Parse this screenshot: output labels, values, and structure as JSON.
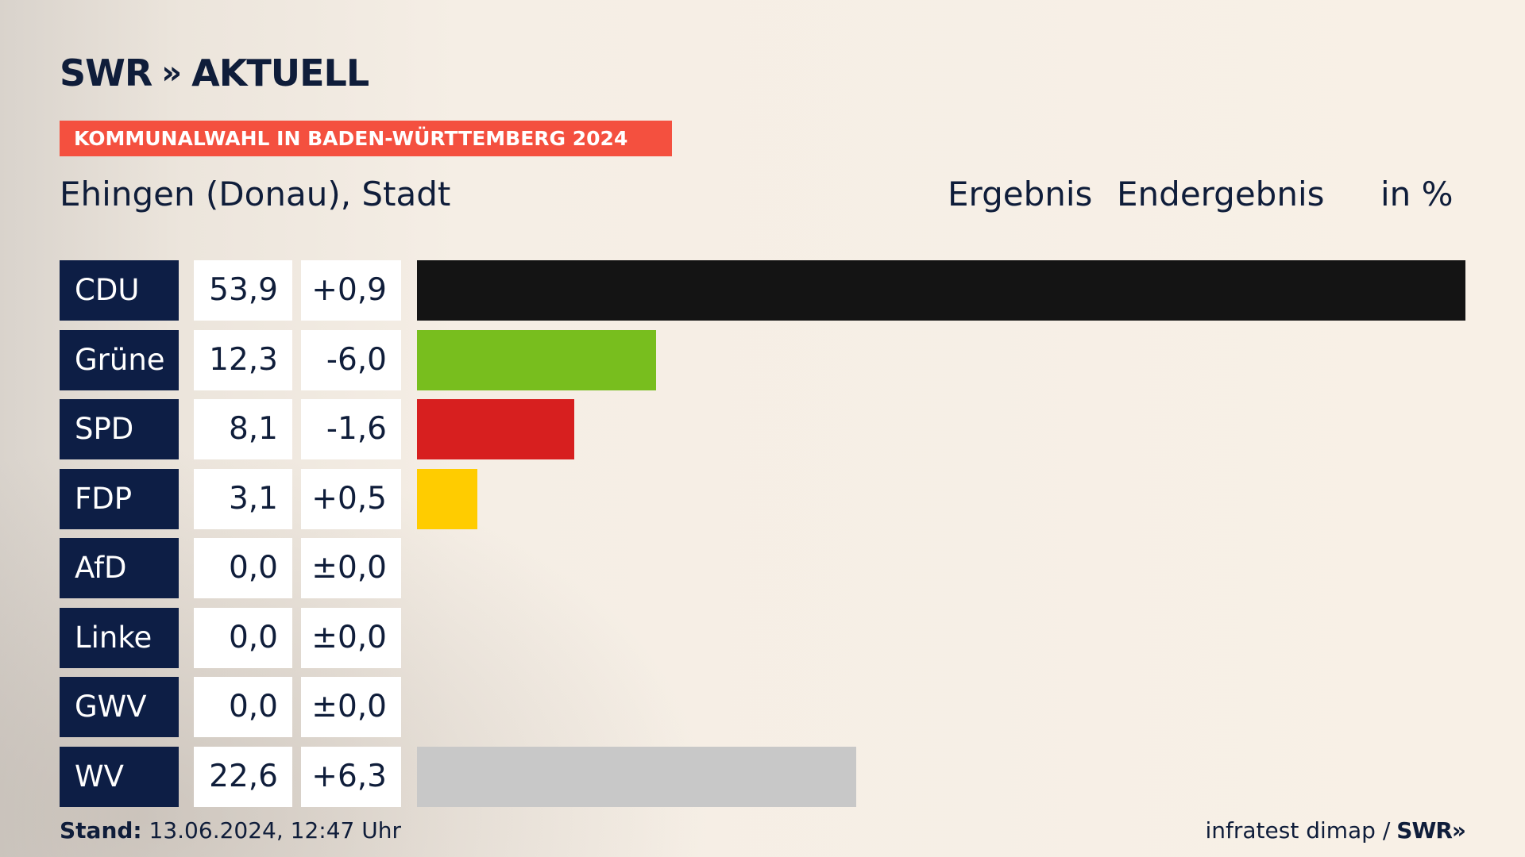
{
  "brand": {
    "logo_text": "SWR",
    "logo_chevrons": "»",
    "logo_suffix": "AKTUELL"
  },
  "kicker": "KOMMUNALWAHL IN BADEN-WÜRTTEMBERG 2024",
  "place": "Ehingen (Donau), Stadt",
  "headers": {
    "ergebnis": "Ergebnis",
    "status": "Endergebnis",
    "unit": "in %"
  },
  "colors": {
    "party_label_bg": "#0d1e45",
    "kicker_bg": "#f4503f",
    "CDU": "#141414",
    "Grüne": "#78be1e",
    "SPD": "#d71f1f",
    "FDP": "#ffcc00",
    "AfD": "#1a9fe0",
    "Linke": "#be3075",
    "GWV": "#888888",
    "WV": "#c8c8c8"
  },
  "chart_data": {
    "type": "bar",
    "orientation": "horizontal",
    "categories": [
      "CDU",
      "Grüne",
      "SPD",
      "FDP",
      "AfD",
      "Linke",
      "GWV",
      "WV"
    ],
    "values": [
      53.9,
      12.3,
      8.1,
      3.1,
      0.0,
      0.0,
      0.0,
      22.6
    ],
    "value_labels": [
      "53,9",
      "12,3",
      "8,1",
      "3,1",
      "0,0",
      "0,0",
      "0,0",
      "22,6"
    ],
    "changes": [
      0.9,
      -6.0,
      -1.6,
      0.5,
      0.0,
      0.0,
      0.0,
      6.3
    ],
    "change_labels": [
      "+0,9",
      "-6,0",
      "-1,6",
      "+0,5",
      "±0,0",
      "±0,0",
      "±0,0",
      "+6,3"
    ],
    "xlim": [
      0,
      53.9
    ],
    "title": "Ehingen (Donau), Stadt",
    "unit": "in %"
  },
  "footer": {
    "stand_label": "Stand:",
    "stand_value": "13.06.2024, 12:47 Uhr",
    "source": "infratest dimap /",
    "source_brand": "SWR»"
  }
}
